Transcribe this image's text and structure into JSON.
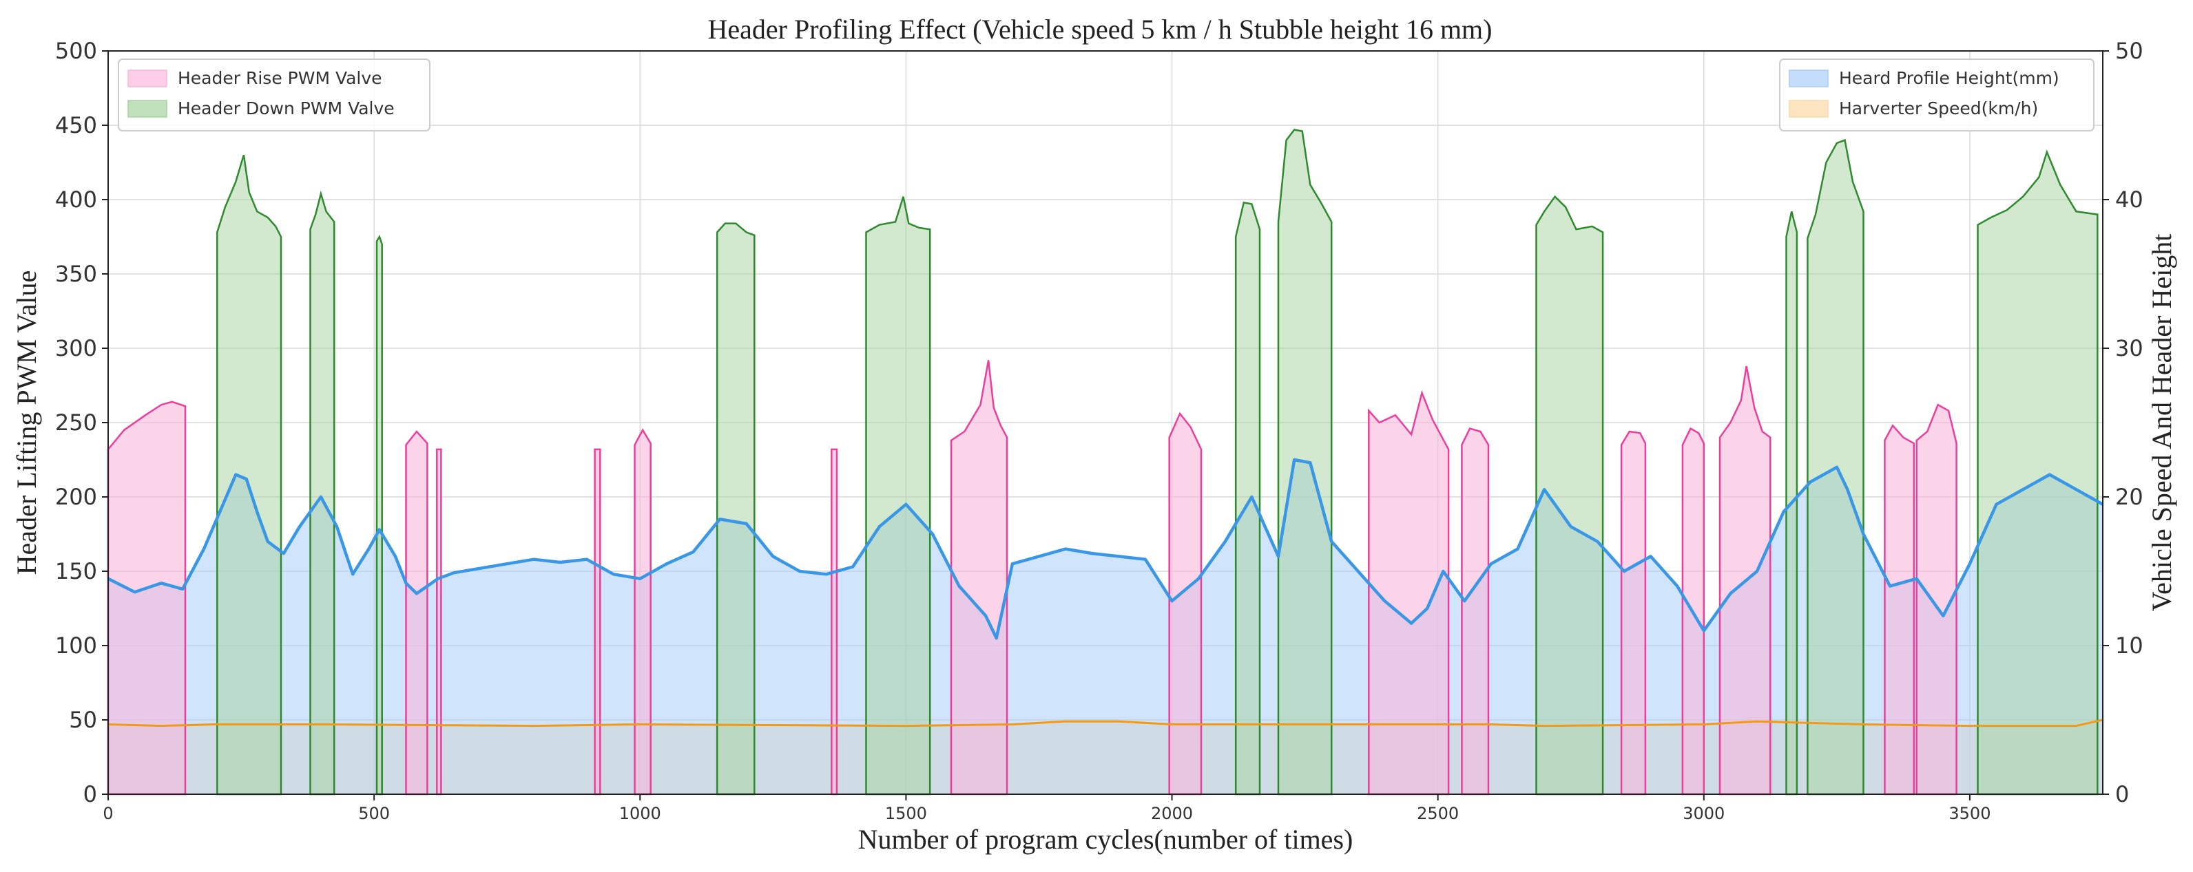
{
  "chart_data": {
    "type": "area",
    "title": "Header Profiling Effect (Vehicle speed 5 km / h Stubble height 16 mm)",
    "xlabel": "Number of program cycles(number of times)",
    "ylabel_left": "Header Lifting PWM Value",
    "ylabel_right": "Vehicle Speed And Header Height",
    "xlim": [
      0,
      3750
    ],
    "ylim_left": [
      0,
      500
    ],
    "ylim_right": [
      0,
      50
    ],
    "x_ticks": [
      0,
      500,
      1000,
      1500,
      2000,
      2500,
      3000,
      3500
    ],
    "x_tick_labels": [
      "0",
      "500",
      "1000",
      "1500",
      "2000",
      "2500",
      "3000",
      "3500"
    ],
    "y_left_ticks": [
      0,
      50,
      100,
      150,
      200,
      250,
      300,
      350,
      400,
      450,
      500
    ],
    "y_left_tick_labels": [
      "0",
      "50",
      "100",
      "150",
      "200",
      "250",
      "300",
      "350",
      "400",
      "450",
      "500"
    ],
    "y_right_ticks": [
      0,
      10,
      20,
      30,
      40,
      50
    ],
    "y_right_tick_labels": [
      "0",
      "10",
      "20",
      "30",
      "40",
      "50"
    ],
    "grid": true,
    "legend_left": {
      "position": "top-left",
      "entries": [
        "Header Rise PWM Valve",
        "Header Down PWM Valve"
      ]
    },
    "legend_right": {
      "position": "top-right",
      "entries": [
        "Heard Profile Height(mm)",
        "Harverter Speed(km/h)"
      ]
    },
    "colors": {
      "rise_fill": "#f9b8dc",
      "rise_line": "#ea3f9b",
      "down_fill": "#a5d39f",
      "down_line": "#2f8a2f",
      "height_fill": "#a9cff8",
      "height_line": "#3a97e6",
      "speed_fill": "#fbd9a7",
      "speed_line": "#f29a18"
    },
    "series": [
      {
        "name": "Header Rise PWM Valve",
        "axis": "left",
        "segments": [
          {
            "x": [
              0,
              30,
              70,
              100,
              120,
              145
            ],
            "y": [
              232,
              245,
              255,
              262,
              264,
              261
            ]
          },
          {
            "x": [
              560,
              580,
              600
            ],
            "y": [
              235,
              244,
              236
            ]
          },
          {
            "x": [
              618,
              622,
              626
            ],
            "y": [
              232,
              232,
              232
            ]
          },
          {
            "x": [
              915,
              920,
              925
            ],
            "y": [
              232,
              232,
              232
            ]
          },
          {
            "x": [
              990,
              1005,
              1020
            ],
            "y": [
              235,
              245,
              236
            ]
          },
          {
            "x": [
              1360,
              1365,
              1370
            ],
            "y": [
              232,
              232,
              232
            ]
          },
          {
            "x": [
              1585,
              1610,
              1640,
              1655,
              1665,
              1678,
              1690
            ],
            "y": [
              238,
              244,
              262,
              292,
              260,
              248,
              240
            ]
          },
          {
            "x": [
              1995,
              2015,
              2035,
              2055
            ],
            "y": [
              240,
              256,
              247,
              232
            ]
          },
          {
            "x": [
              2370,
              2390,
              2420,
              2450,
              2470,
              2490,
              2520
            ],
            "y": [
              258,
              250,
              255,
              242,
              270,
              252,
              232
            ]
          },
          {
            "x": [
              2545,
              2560,
              2580,
              2595
            ],
            "y": [
              235,
              246,
              244,
              235
            ]
          },
          {
            "x": [
              2845,
              2860,
              2880,
              2890
            ],
            "y": [
              235,
              244,
              243,
              236
            ]
          },
          {
            "x": [
              2960,
              2975,
              2990,
              3000
            ],
            "y": [
              235,
              246,
              243,
              236
            ]
          },
          {
            "x": [
              3030,
              3050,
              3070,
              3080,
              3095,
              3110,
              3125
            ],
            "y": [
              240,
              250,
              265,
              288,
              260,
              244,
              240
            ]
          },
          {
            "x": [
              3340,
              3355,
              3375,
              3395
            ],
            "y": [
              238,
              248,
              240,
              236
            ]
          },
          {
            "x": [
              3400,
              3420,
              3440,
              3460,
              3475
            ],
            "y": [
              238,
              244,
              262,
              258,
              236
            ]
          }
        ]
      },
      {
        "name": "Header Down PWM Valve",
        "axis": "left",
        "segments": [
          {
            "x": [
              205,
              220,
              240,
              255,
              265,
              280,
              300,
              315,
              325
            ],
            "y": [
              378,
              395,
              412,
              430,
              405,
              392,
              388,
              382,
              375
            ]
          },
          {
            "x": [
              380,
              390,
              400,
              410,
              425
            ],
            "y": [
              380,
              390,
              404,
              392,
              385
            ]
          },
          {
            "x": [
              505,
              510,
              515
            ],
            "y": [
              372,
              375,
              370
            ]
          },
          {
            "x": [
              1145,
              1160,
              1180,
              1200,
              1215
            ],
            "y": [
              378,
              384,
              384,
              378,
              376
            ]
          },
          {
            "x": [
              1425,
              1450,
              1480,
              1495,
              1505,
              1525,
              1545
            ],
            "y": [
              378,
              383,
              385,
              402,
              384,
              381,
              380
            ]
          },
          {
            "x": [
              2120,
              2135,
              2150,
              2165
            ],
            "y": [
              375,
              398,
              397,
              380
            ]
          },
          {
            "x": [
              2200,
              2215,
              2230,
              2245,
              2260,
              2280,
              2300
            ],
            "y": [
              385,
              440,
              447,
              446,
              410,
              398,
              385
            ]
          },
          {
            "x": [
              2685,
              2700,
              2720,
              2740,
              2760,
              2790,
              2810
            ],
            "y": [
              383,
              392,
              402,
              395,
              380,
              382,
              378
            ]
          },
          {
            "x": [
              3155,
              3165,
              3175
            ],
            "y": [
              375,
              392,
              378
            ]
          },
          {
            "x": [
              3195,
              3210,
              3230,
              3250,
              3265,
              3280,
              3300
            ],
            "y": [
              374,
              390,
              425,
              438,
              440,
              412,
              392
            ]
          },
          {
            "x": [
              3515,
              3540,
              3570,
              3600,
              3630,
              3645,
              3670,
              3700,
              3740
            ],
            "y": [
              383,
              388,
              393,
              402,
              415,
              432,
              410,
              392,
              390
            ]
          }
        ]
      },
      {
        "name": "Heard Profile Height(mm)",
        "axis": "right",
        "x": [
          0,
          50,
          100,
          140,
          180,
          210,
          240,
          260,
          280,
          300,
          330,
          360,
          400,
          430,
          460,
          490,
          510,
          540,
          560,
          580,
          600,
          620,
          650,
          700,
          750,
          800,
          850,
          900,
          950,
          1000,
          1050,
          1100,
          1150,
          1200,
          1250,
          1300,
          1350,
          1400,
          1450,
          1500,
          1550,
          1600,
          1650,
          1670,
          1700,
          1750,
          1800,
          1850,
          1900,
          1950,
          2000,
          2050,
          2100,
          2150,
          2200,
          2230,
          2260,
          2300,
          2350,
          2400,
          2450,
          2480,
          2510,
          2550,
          2600,
          2650,
          2700,
          2750,
          2800,
          2850,
          2900,
          2950,
          3000,
          3050,
          3100,
          3150,
          3200,
          3250,
          3270,
          3300,
          3350,
          3400,
          3450,
          3500,
          3550,
          3600,
          3650,
          3700,
          3750
        ],
        "y": [
          14.5,
          13.6,
          14.2,
          13.8,
          16.5,
          19.0,
          21.5,
          21.2,
          19.0,
          17.0,
          16.2,
          18.0,
          20.0,
          18.0,
          14.8,
          16.5,
          17.8,
          16.0,
          14.2,
          13.5,
          14.0,
          14.5,
          14.9,
          15.2,
          15.5,
          15.8,
          15.6,
          15.8,
          14.8,
          14.5,
          15.5,
          16.3,
          18.5,
          18.2,
          16.0,
          15.0,
          14.8,
          15.3,
          18.0,
          19.5,
          17.5,
          14.0,
          12.0,
          10.5,
          15.5,
          16.0,
          16.5,
          16.2,
          16.0,
          15.8,
          13.0,
          14.5,
          17.0,
          20.0,
          16.0,
          22.5,
          22.3,
          17.0,
          15.0,
          13.0,
          11.5,
          12.5,
          15.0,
          13.0,
          15.5,
          16.5,
          20.5,
          18.0,
          17.0,
          15.0,
          16.0,
          14.0,
          11.0,
          13.5,
          15.0,
          19.0,
          21.0,
          22.0,
          20.5,
          17.5,
          14.0,
          14.5,
          12.0,
          15.5,
          19.5,
          20.5,
          21.5,
          20.5,
          19.5
        ]
      },
      {
        "name": "Harverter Speed(km/h)",
        "axis": "right",
        "x": [
          0,
          100,
          200,
          400,
          800,
          1000,
          1500,
          1700,
          1800,
          1900,
          2000,
          2300,
          2600,
          2700,
          3000,
          3100,
          3300,
          3500,
          3700,
          3750
        ],
        "y": [
          4.7,
          4.6,
          4.7,
          4.7,
          4.6,
          4.7,
          4.6,
          4.7,
          4.9,
          4.9,
          4.7,
          4.7,
          4.7,
          4.6,
          4.7,
          4.9,
          4.7,
          4.6,
          4.6,
          5.0
        ]
      }
    ]
  }
}
